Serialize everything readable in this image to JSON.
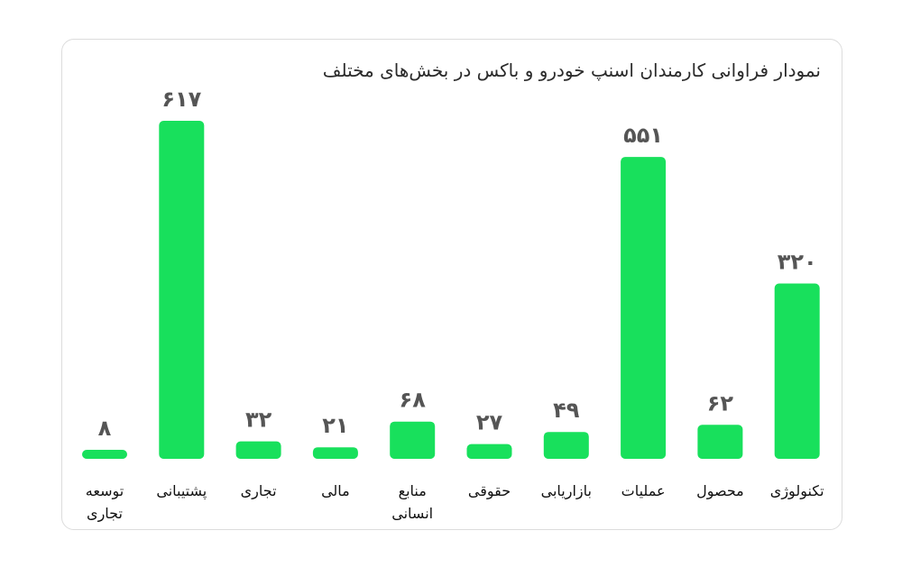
{
  "chart_data": {
    "type": "bar",
    "title": "نمودار فراوانی کارمندان اسنپ خودرو و باکس در بخش‌های مختلف",
    "xlabel": "",
    "ylabel": "",
    "categories": [
      [
        "توسعه",
        "تجاری"
      ],
      [
        "پشتیبانی"
      ],
      [
        "تجاری"
      ],
      [
        "مالی"
      ],
      [
        "منابع",
        "انسانی"
      ],
      [
        "حقوقی"
      ],
      [
        "بازاریابی"
      ],
      [
        "عملیات"
      ],
      [
        "محصول"
      ],
      [
        "تکنولوژی"
      ]
    ],
    "values": [
      8,
      617,
      32,
      21,
      68,
      27,
      49,
      551,
      62,
      320
    ],
    "value_labels": [
      "۸",
      "۶۱۷",
      "۳۲",
      "۲۱",
      "۶۸",
      "۲۷",
      "۴۹",
      "۵۵۱",
      "۶۲",
      "۳۲۰"
    ],
    "ylim": [
      0,
      617
    ],
    "grid": false,
    "legend": "none",
    "bar_color": "#18e05c",
    "value_color": "#555555",
    "label_color": "#111111"
  }
}
